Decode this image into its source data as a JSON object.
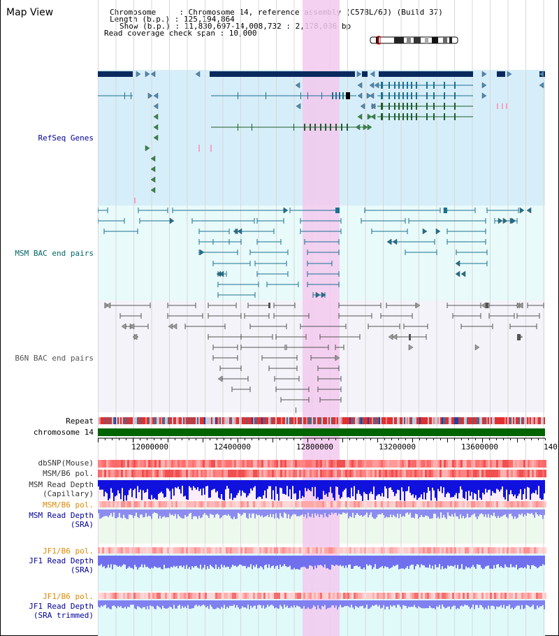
{
  "header": {
    "title": "Map View",
    "info": {
      "chromosome": "Chromosome     : Chromosome 14, reference assembly (C57BL/6J) (Build 37)",
      "length": "Length (b.p.) : 125,194,864",
      "show": "Show (b.p.) : 11,830,697-14,008,732 : 2,178,036 bp",
      "span": "Read coverage check span : 10,000"
    }
  },
  "tracks": {
    "refseq": "RefSeq Genes",
    "msm_bac": "MSM BAC end pairs",
    "b6n_bac": "B6N BAC end pairs",
    "repeat": "Repeat",
    "chromosome": "chromosome 14",
    "dbsnp": "dbSNP(Mouse)",
    "msm_pol1": "MSM/B6 pol.",
    "msm_depth_cap_1": "MSM Read Depth",
    "msm_depth_cap_2": "(Capillary)",
    "msm_pol2": "MSM/B6 pol.",
    "msm_depth_sra_1": "MSM Read Depth",
    "msm_depth_sra_2": "(SRA)",
    "jf1_pol1": "JF1/B6 pol.",
    "jf1_depth_sra_1": "JF1 Read Depth",
    "jf1_depth_sra_2": "(SRA)",
    "jf1_pol2": "JF1/B6 pol.",
    "jf1_depth_trim_1": "JF1 Read Depth",
    "jf1_depth_trim_2": "(SRA trimmed)"
  },
  "ruler": {
    "ticks": [
      "12000000",
      "12400000",
      "12800000",
      "13200000",
      "13600000",
      "140"
    ]
  },
  "colors": {
    "refseq_bg": "#d6eef9",
    "msm_bg": "#e8fafa",
    "b6n_bg": "#f3f3f9",
    "highlight": "#f3c9ee",
    "gene_dark": "#0a2a5e",
    "gene_teal": "#1a7090",
    "gene_green": "#1d5c2c",
    "chrom_green": "#006400",
    "refseq_label": "#000099",
    "msm_label": "#006666",
    "b6n_label": "#555555",
    "orange_label": "#dd8800",
    "blue_label": "#000099"
  }
}
